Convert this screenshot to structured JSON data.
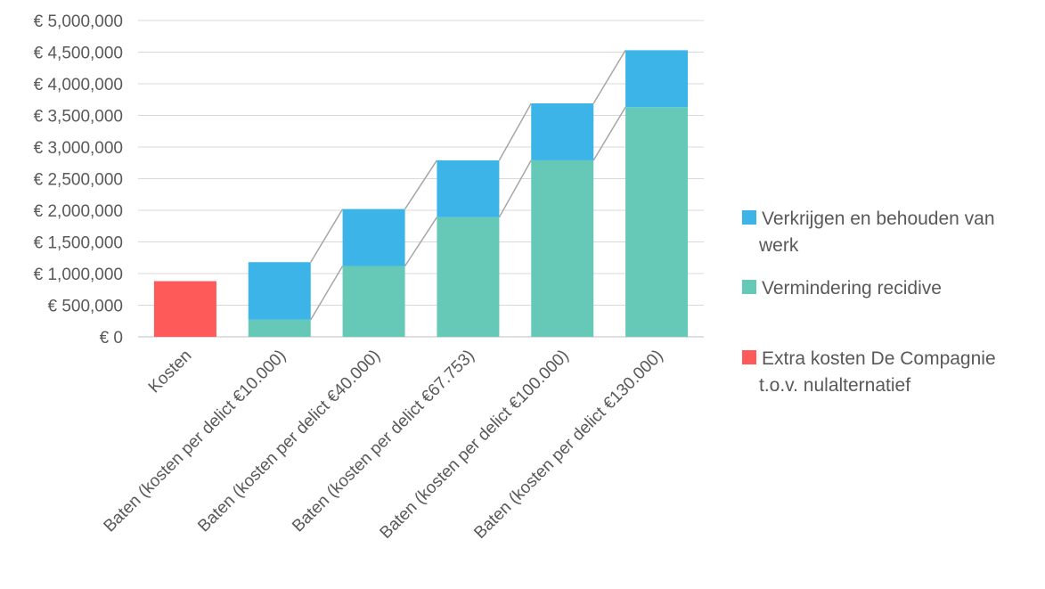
{
  "chart_data": {
    "type": "bar",
    "stacked": true,
    "title": "",
    "xlabel": "",
    "ylabel": "",
    "ylim": [
      0,
      5000000
    ],
    "yticks": [
      0,
      500000,
      1000000,
      1500000,
      2000000,
      2500000,
      3000000,
      3500000,
      4000000,
      4500000,
      5000000
    ],
    "ytick_labels": [
      "€ 0",
      "€ 500,000",
      "€ 1,000,000",
      "€ 1,500,000",
      "€ 2,000,000",
      "€ 2,500,000",
      "€ 3,000,000",
      "€ 3,500,000",
      "€ 4,000,000",
      "€ 4,500,000",
      "€ 5,000,000"
    ],
    "grid": true,
    "legend_position": "right",
    "categories": [
      "Kosten",
      "Baten (kosten per delict €10.000)",
      "Baten (kosten per delict €40.000)",
      "Baten (kosten per delict €67.753)",
      "Baten (kosten per delict €100.000)",
      "Baten (kosten per delict €130.000)"
    ],
    "series": [
      {
        "name": "Extra kosten De Compagnie t.o.v. nulalternatief",
        "color": "#FF5A5A",
        "values": [
          880000,
          0,
          0,
          0,
          0,
          0
        ]
      },
      {
        "name": "Vermindering recidive",
        "color": "#66C9B8",
        "values": [
          0,
          270000,
          1120000,
          1890000,
          2790000,
          3630000
        ]
      },
      {
        "name": "Verkrijgen en behouden van werk",
        "color": "#3DB4E8",
        "values": [
          0,
          910000,
          900000,
          900000,
          900000,
          900000
        ]
      }
    ],
    "connector_lines": true,
    "legend": [
      {
        "label_lines": [
          "Verkrijgen en behouden van",
          "werk"
        ],
        "color": "#3DB4E8"
      },
      {
        "label_lines": [
          "Vermindering recidive"
        ],
        "color": "#66C9B8"
      },
      {
        "label_lines": [
          "Extra kosten De Compagnie",
          "t.o.v. nulalternatief"
        ],
        "color": "#FF5A5A"
      }
    ]
  }
}
